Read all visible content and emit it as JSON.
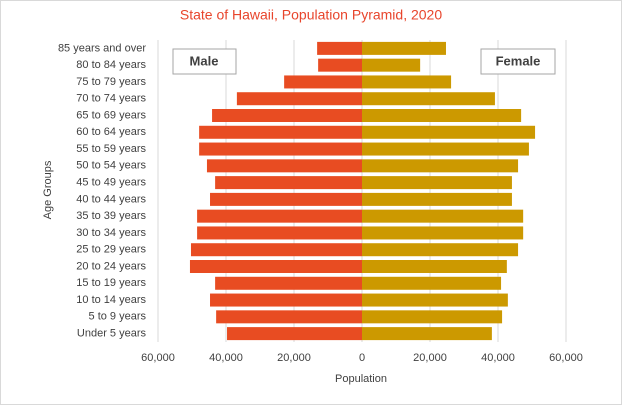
{
  "chart_data": {
    "type": "pyramid",
    "title": "State of Hawaii, Population Pyramid, 2020",
    "x_label": "Population",
    "y_label": "Age Groups",
    "categories": [
      "85 years and over",
      "80 to 84 years",
      "75 to 79 years",
      "70 to 74 years",
      "65 to 69 years",
      "60 to 64 years",
      "55 to 59 years",
      "50 to 54 years",
      "45 to 49 years",
      "40 to 44 years",
      "35 to 39 years",
      "30 to 34 years",
      "25 to 29 years",
      "20 to 24 years",
      "15 to 19 years",
      "10 to 14 years",
      "5 to 9 years",
      "Under 5 years"
    ],
    "series": [
      {
        "name": "Male",
        "color": "#e84c22",
        "values": [
          -13200,
          -12900,
          -22900,
          -36800,
          -44100,
          -47900,
          -47900,
          -45600,
          -43200,
          -44700,
          -48500,
          -48500,
          -50300,
          -50600,
          -43200,
          -44700,
          -42900,
          -39700
        ]
      },
      {
        "name": "Female",
        "color": "#cc9900",
        "values": [
          24700,
          17100,
          26200,
          39100,
          46800,
          50900,
          49100,
          45900,
          44100,
          44100,
          47400,
          47400,
          45900,
          42600,
          40900,
          42900,
          41200,
          38200
        ]
      }
    ],
    "xlim": [
      -60000,
      60000
    ],
    "xticks": [
      {
        "value": -60000,
        "label": "60,000"
      },
      {
        "value": -40000,
        "label": "40,000"
      },
      {
        "value": -20000,
        "label": "20,000"
      },
      0,
      {
        "value": 20000,
        "label": "20,000"
      },
      {
        "value": 40000,
        "label": "40,000"
      },
      {
        "value": 60000,
        "label": "60,000"
      }
    ],
    "grid": true
  }
}
